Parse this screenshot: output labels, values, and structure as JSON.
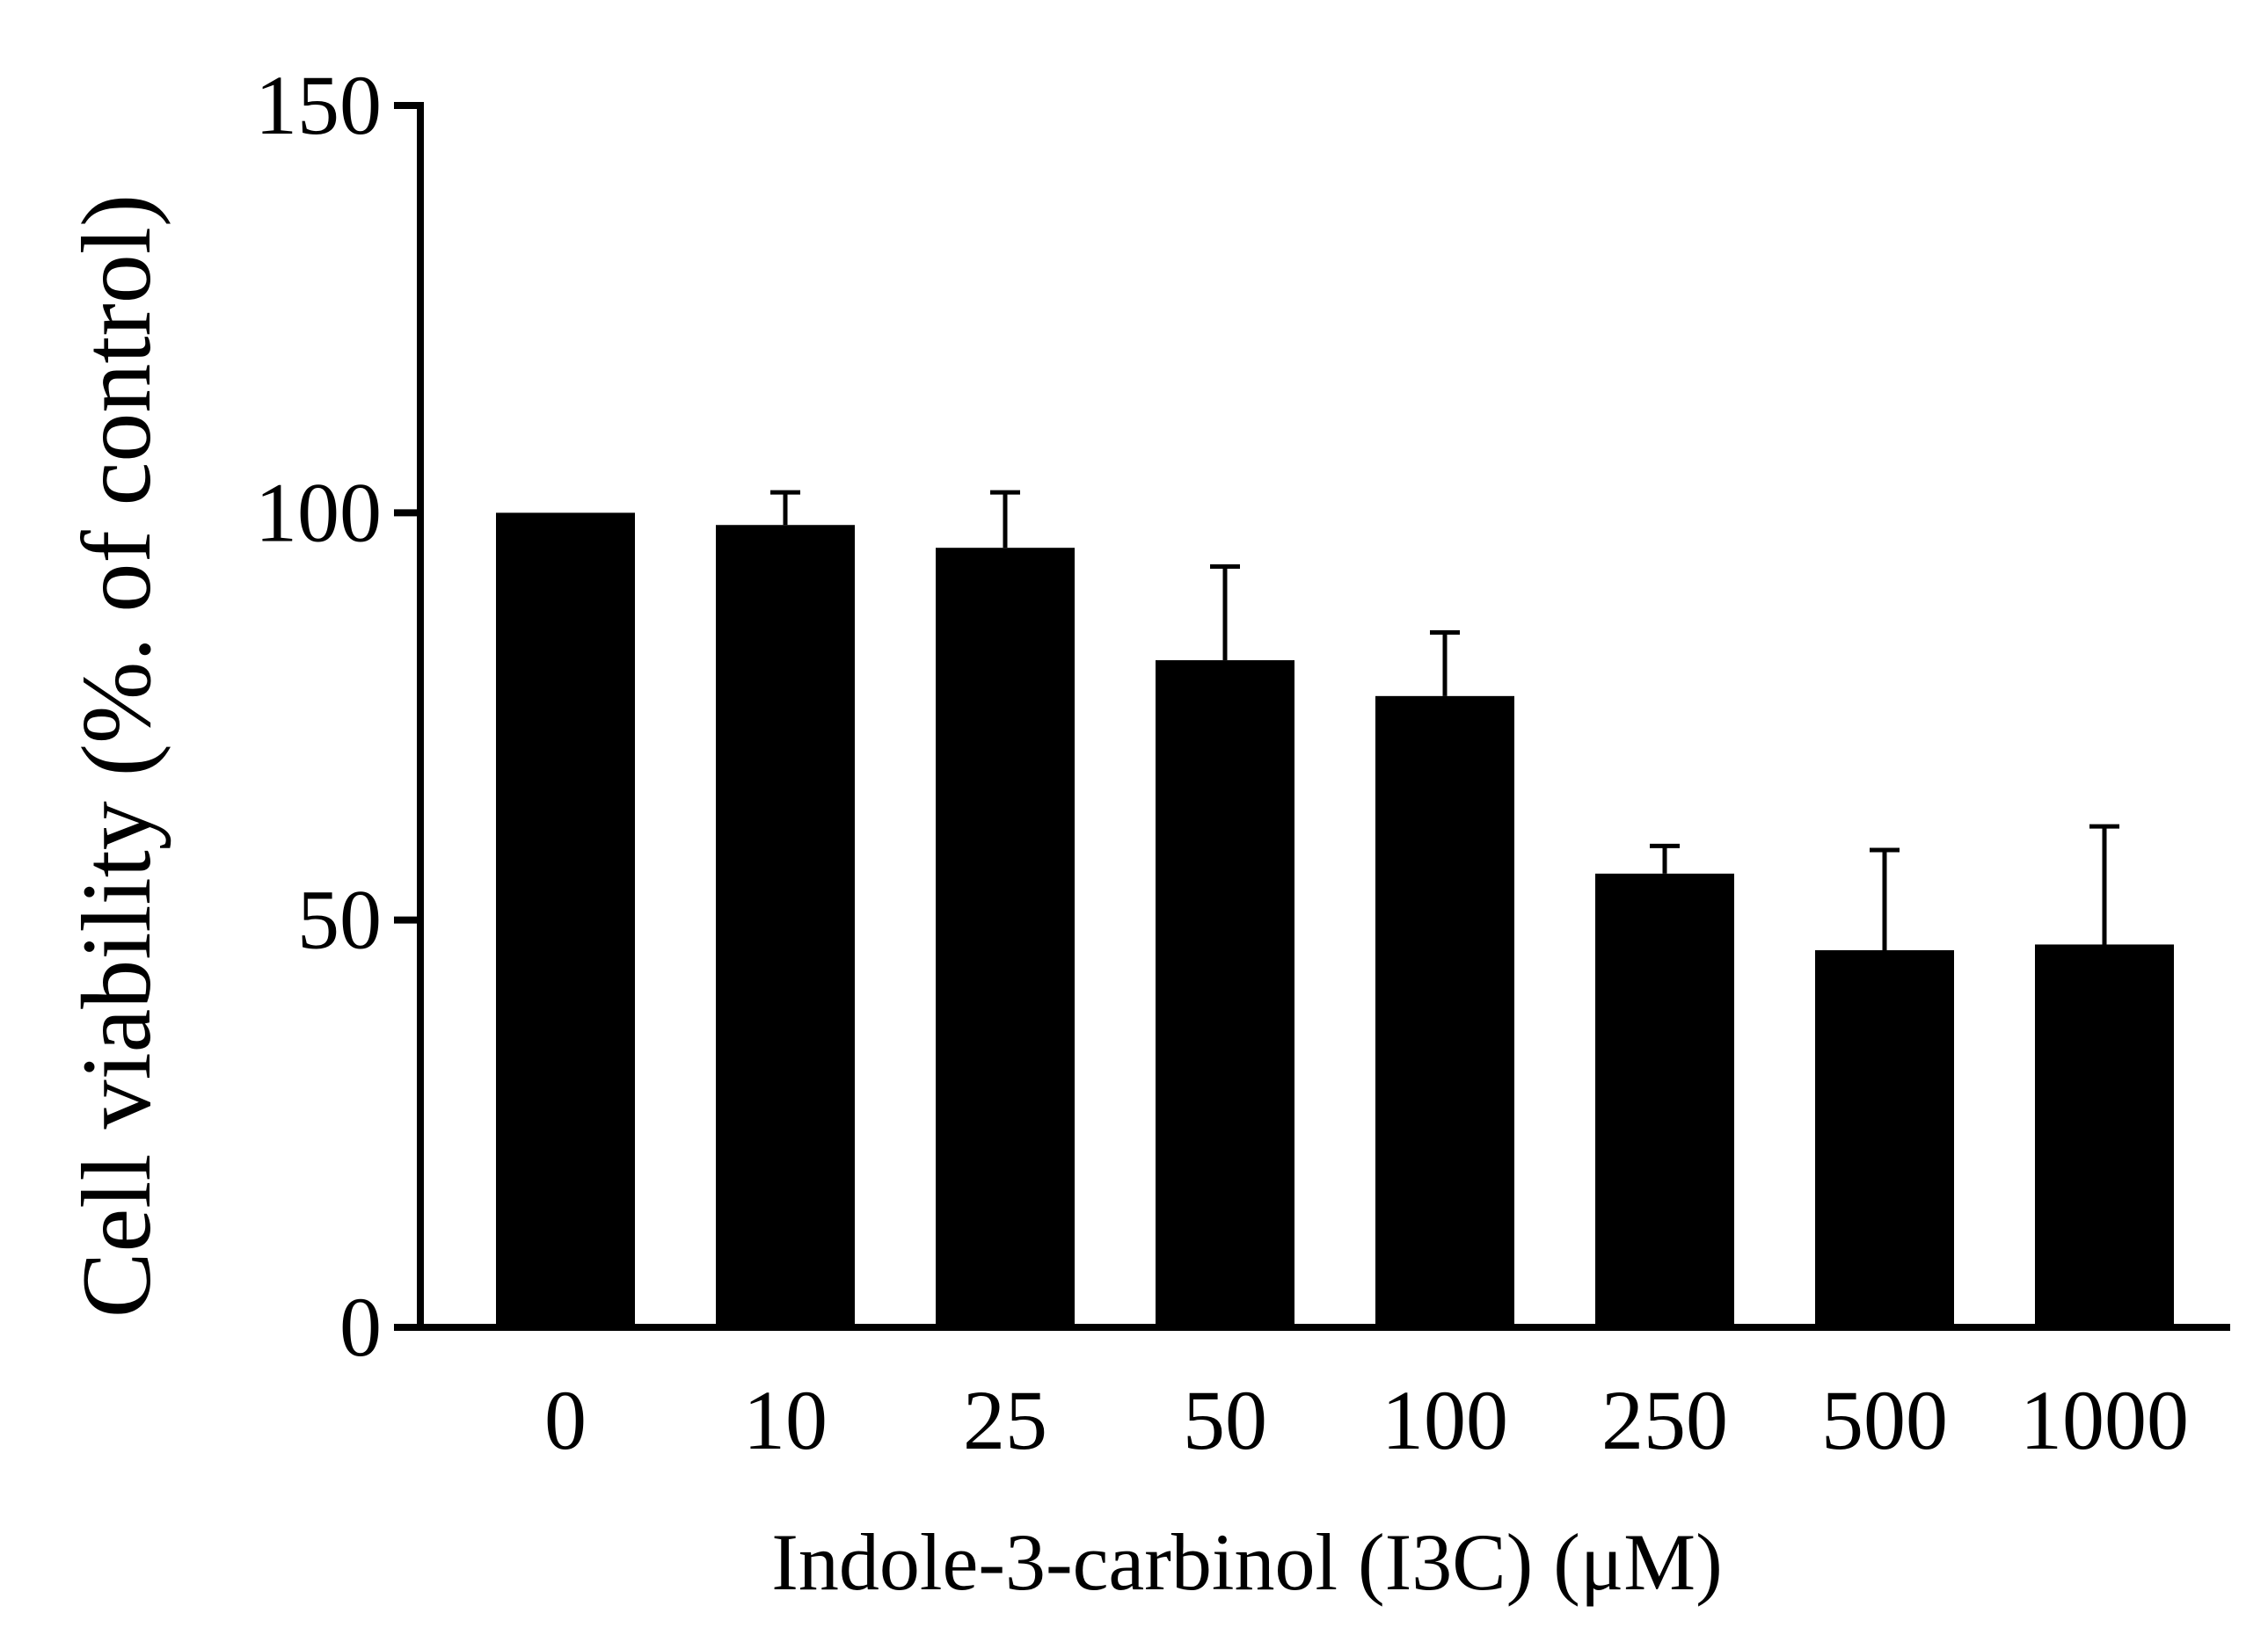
{
  "chart_data": {
    "type": "bar",
    "categories": [
      "0",
      "10",
      "25",
      "50",
      "100",
      "250",
      "500",
      "1000"
    ],
    "series": [
      {
        "values": [
          100,
          98.5,
          95.7,
          81.9,
          77.5,
          55.7,
          46.3,
          47.0
        ],
        "error_plus": [
          0,
          4.0,
          6.8,
          11.5,
          7.8,
          3.4,
          12.3,
          14.5
        ]
      }
    ],
    "xlabel": "Indole-3-carbinol (I3C) (μM)",
    "ylabel": "Cell viability (%. of control)",
    "ylim": [
      0,
      150
    ],
    "yticks": [
      "0",
      "50",
      "100",
      "150"
    ],
    "bar_color": "#000000",
    "grid": false,
    "legend": "none"
  }
}
